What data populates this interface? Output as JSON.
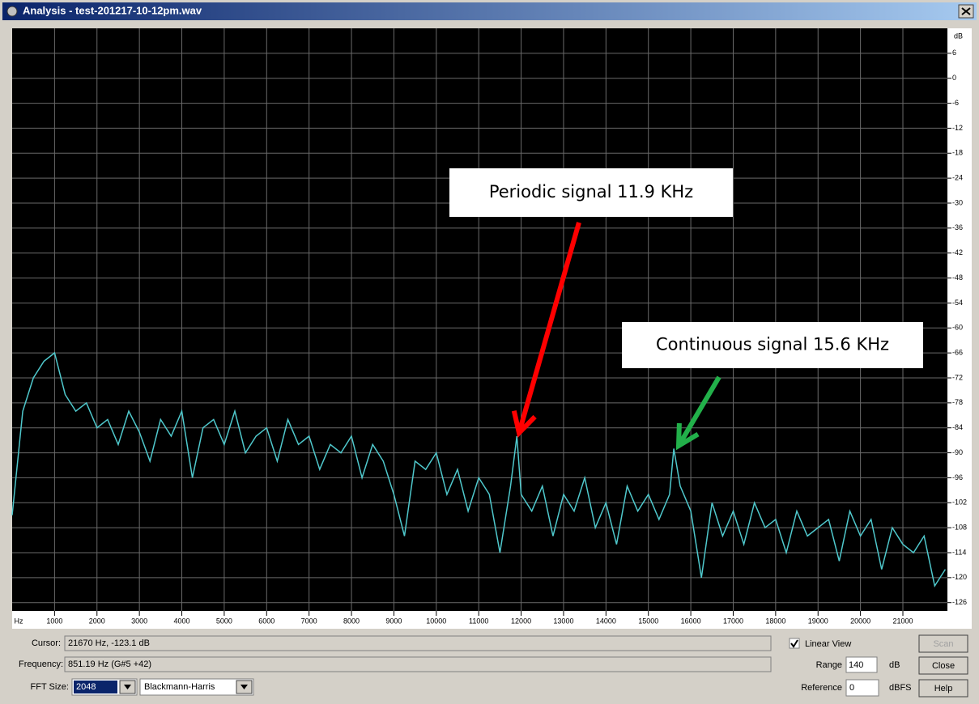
{
  "window": {
    "title": "Analysis - test-201217-10-12pm.wav"
  },
  "chart_data": {
    "type": "line",
    "x_label": "Hz",
    "y_label": "dB",
    "color": "#4fc8cc",
    "x": [
      0,
      250,
      500,
      750,
      1000,
      1250,
      1500,
      1750,
      2000,
      2250,
      2500,
      2750,
      3000,
      3250,
      3500,
      3750,
      4000,
      4250,
      4500,
      4750,
      5000,
      5250,
      5500,
      5750,
      6000,
      6250,
      6500,
      6750,
      7000,
      7250,
      7500,
      7750,
      8000,
      8250,
      8500,
      8750,
      9000,
      9250,
      9500,
      9750,
      10000,
      10250,
      10500,
      10750,
      11000,
      11250,
      11500,
      11750,
      11900,
      12000,
      12250,
      12500,
      12750,
      13000,
      13250,
      13500,
      13750,
      14000,
      14250,
      14500,
      14750,
      15000,
      15250,
      15500,
      15600,
      15750,
      16000,
      16250,
      16500,
      16750,
      17000,
      17250,
      17500,
      17750,
      18000,
      18250,
      18500,
      18750,
      19000,
      19250,
      19500,
      19750,
      20000,
      20250,
      20500,
      20750,
      21000,
      21250,
      21500,
      21750,
      22000
    ],
    "values": [
      -105,
      -80,
      -72,
      -68,
      -66,
      -76,
      -80,
      -78,
      -84,
      -82,
      -88,
      -80,
      -85,
      -92,
      -82,
      -86,
      -80,
      -96,
      -84,
      -82,
      -88,
      -80,
      -90,
      -86,
      -84,
      -92,
      -82,
      -88,
      -86,
      -94,
      -88,
      -90,
      -86,
      -96,
      -88,
      -92,
      -100,
      -110,
      -92,
      -94,
      -90,
      -100,
      -94,
      -104,
      -96,
      -100,
      -114,
      -98,
      -86,
      -100,
      -104,
      -98,
      -110,
      -100,
      -104,
      -96,
      -108,
      -102,
      -112,
      -98,
      -104,
      -100,
      -106,
      -100,
      -89,
      -98,
      -104,
      -120,
      -102,
      -110,
      -104,
      -112,
      -102,
      -108,
      -106,
      -114,
      -104,
      -110,
      -108,
      -106,
      -116,
      -104,
      -110,
      -106,
      -118,
      -108,
      -112,
      -114,
      -110,
      -122,
      -118
    ],
    "xlim": [
      0,
      22050
    ],
    "ylim": [
      -128,
      12
    ],
    "xticks": [
      1000,
      2000,
      3000,
      4000,
      5000,
      6000,
      7000,
      8000,
      9000,
      10000,
      11000,
      12000,
      13000,
      14000,
      15000,
      16000,
      17000,
      18000,
      19000,
      20000,
      21000
    ],
    "yticks": [
      6,
      0,
      -6,
      -12,
      -18,
      -24,
      -30,
      -36,
      -42,
      -48,
      -54,
      -60,
      -66,
      -72,
      -78,
      -84,
      -90,
      -96,
      -102,
      -108,
      -114,
      -120,
      -126
    ],
    "grid": true,
    "annotations": [
      {
        "text": "Periodic signal 11.9 KHz",
        "color": "#ff0000"
      },
      {
        "text": "Continuous signal 15.6 KHz",
        "color": "#22b04a"
      }
    ]
  },
  "controls": {
    "cursor_label": "Cursor:",
    "cursor_value": "21670 Hz, -123.1 dB",
    "frequency_label": "Frequency:",
    "frequency_value": "851.19 Hz (G#5 +42)",
    "fft_label": "FFT Size:",
    "fft_value": "2048",
    "window_function": "Blackmann-Harris",
    "linear_view": "Linear View",
    "linear_view_checked": true,
    "range_label": "Range",
    "range_value": "140",
    "range_unit": "dB",
    "reference_label": "Reference",
    "reference_value": "0",
    "reference_unit": "dBFS",
    "buttons": [
      "Scan",
      "Close",
      "Help"
    ]
  }
}
